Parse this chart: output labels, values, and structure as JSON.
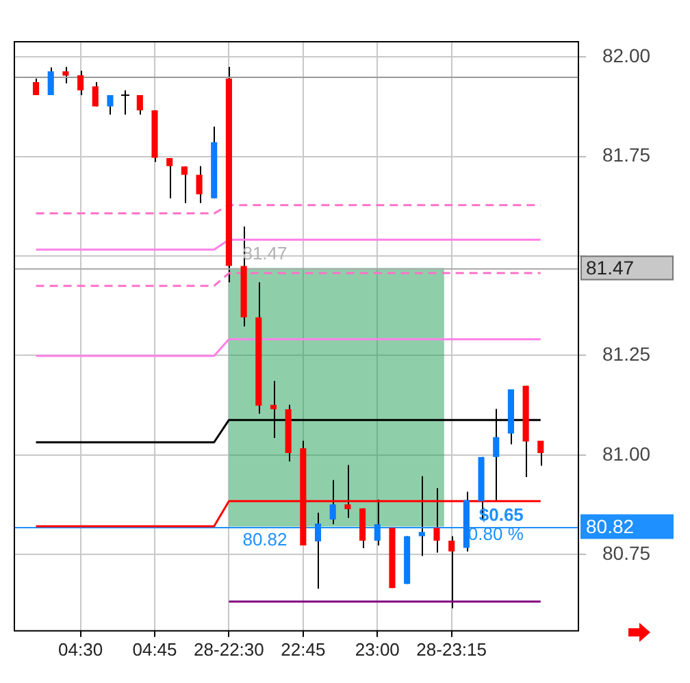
{
  "chart_data": {
    "type": "candlestick",
    "categories": [
      null,
      null,
      null,
      null,
      "04:30",
      null,
      null,
      null,
      null,
      "04:45",
      null,
      null,
      null,
      null,
      "28-22:30",
      null,
      null,
      null,
      null,
      "22:45",
      null,
      null,
      null,
      null,
      "23:00",
      null,
      null,
      null,
      null,
      "28-23:15",
      null,
      null,
      null,
      null,
      null,
      null,
      null,
      null
    ],
    "ohlc": [
      null,
      [
        81.937,
        81.946,
        81.904,
        81.904
      ],
      [
        81.904,
        81.974,
        81.904,
        81.964
      ],
      [
        81.964,
        81.975,
        81.934,
        81.953
      ],
      [
        81.954,
        81.965,
        81.904,
        81.916
      ],
      [
        81.926,
        81.937,
        81.876,
        81.876
      ],
      [
        81.876,
        81.904,
        81.855,
        81.904
      ],
      [
        81.904,
        81.916,
        81.855,
        81.904
      ],
      [
        81.904,
        81.904,
        81.855,
        81.866
      ],
      [
        81.866,
        81.866,
        81.736,
        81.747
      ],
      [
        81.746,
        81.746,
        81.645,
        81.726
      ],
      [
        81.725,
        81.725,
        81.633,
        81.704
      ],
      [
        81.704,
        81.726,
        81.633,
        81.655
      ],
      [
        81.645,
        81.825,
        81.645,
        81.786
      ],
      [
        81.946,
        81.975,
        81.434,
        81.475
      ],
      [
        81.475,
        81.574,
        81.323,
        81.346
      ],
      [
        81.346,
        81.434,
        81.104,
        81.124
      ],
      [
        81.126,
        81.186,
        81.043,
        81.115
      ],
      [
        81.115,
        81.126,
        80.984,
        81.005
      ],
      [
        81.017,
        81.036,
        80.773,
        80.773
      ],
      [
        80.783,
        80.855,
        80.664,
        80.828
      ],
      [
        80.838,
        80.937,
        80.826,
        80.876
      ],
      [
        80.876,
        80.975,
        80.842,
        80.864
      ],
      [
        80.866,
        80.866,
        80.766,
        80.785
      ],
      [
        80.785,
        80.888,
        80.773,
        80.826
      ],
      [
        80.817,
        80.817,
        80.666,
        80.666
      ],
      [
        80.676,
        80.796,
        80.676,
        80.796
      ],
      [
        80.796,
        80.947,
        80.746,
        80.807
      ],
      [
        80.817,
        80.917,
        80.755,
        80.785
      ],
      [
        80.785,
        80.796,
        80.615,
        80.758
      ],
      [
        80.767,
        80.908,
        80.758,
        80.887
      ],
      [
        80.884,
        80.995,
        80.838,
        80.995
      ],
      [
        80.995,
        81.116,
        80.884,
        81.045
      ],
      [
        81.054,
        81.165,
        81.027,
        81.165
      ],
      [
        81.174,
        81.174,
        80.945,
        81.034
      ],
      [
        81.036,
        81.036,
        80.973,
        81.005
      ],
      null,
      null
    ],
    "colors": [
      null,
      "#ff0000",
      "#0a7cff",
      "#ff0000",
      "#ff0000",
      "#ff0000",
      "#0a7cff",
      "#000000",
      "#ff0000",
      "#ff0000",
      "#ff0000",
      "#ff0000",
      "#ff0000",
      "#0a7cff",
      "#ff0000",
      "#ff0000",
      "#ff0000",
      "#ff0000",
      "#ff0000",
      "#ff0000",
      "#0a7cff",
      "#0a7cff",
      "#ff0000",
      "#ff0000",
      "#0a7cff",
      "#ff0000",
      "#0a7cff",
      "#0a7cff",
      "#ff0000",
      "#ff0000",
      "#0a7cff",
      "#0a7cff",
      "#0a7cff",
      "#0a7cff",
      "#ff0000",
      "#ff0000",
      null,
      null
    ],
    "series": [
      {
        "type": "line",
        "color": "#ff70c8",
        "line_style": "dashed",
        "values": [
          null,
          81.607,
          81.607,
          81.607,
          81.607,
          81.607,
          81.607,
          81.607,
          81.607,
          81.607,
          81.607,
          81.607,
          81.607,
          81.607,
          81.628,
          81.628,
          81.628,
          81.628,
          81.628,
          81.628,
          81.628,
          81.628,
          81.628,
          81.628,
          81.628,
          81.628,
          81.628,
          81.628,
          81.628,
          81.628,
          81.628,
          81.628,
          81.628,
          81.628,
          81.628,
          81.628,
          null,
          null
        ]
      },
      {
        "type": "line",
        "color": "#ff80e8",
        "line_style": "solid",
        "values": [
          null,
          81.516,
          81.516,
          81.516,
          81.516,
          81.516,
          81.516,
          81.516,
          81.516,
          81.516,
          81.516,
          81.516,
          81.516,
          81.516,
          81.541,
          81.541,
          81.541,
          81.541,
          81.541,
          81.541,
          81.541,
          81.541,
          81.541,
          81.541,
          81.541,
          81.541,
          81.541,
          81.541,
          81.541,
          81.541,
          81.541,
          81.541,
          81.541,
          81.541,
          81.541,
          81.541,
          null,
          null
        ]
      },
      {
        "type": "line",
        "color": "#ff70c8",
        "line_style": "dashed",
        "values": [
          null,
          81.425,
          81.425,
          81.425,
          81.425,
          81.425,
          81.425,
          81.425,
          81.425,
          81.425,
          81.425,
          81.425,
          81.425,
          81.425,
          81.457,
          81.457,
          81.457,
          81.457,
          81.457,
          81.457,
          81.457,
          81.457,
          81.457,
          81.457,
          81.457,
          81.457,
          81.457,
          81.457,
          81.457,
          81.457,
          81.457,
          81.457,
          81.457,
          81.457,
          81.457,
          81.457,
          null,
          null
        ]
      },
      {
        "type": "line",
        "color": "#ff80e8",
        "line_style": "solid",
        "values": [
          null,
          81.249,
          81.249,
          81.249,
          81.249,
          81.249,
          81.249,
          81.249,
          81.249,
          81.249,
          81.249,
          81.249,
          81.249,
          81.249,
          81.291,
          81.291,
          81.291,
          81.291,
          81.291,
          81.291,
          81.291,
          81.291,
          81.291,
          81.291,
          81.291,
          81.291,
          81.291,
          81.291,
          81.291,
          81.291,
          81.291,
          81.291,
          81.291,
          81.291,
          81.291,
          81.291,
          null,
          null
        ]
      },
      {
        "type": "line",
        "color": "#000000",
        "line_style": "solid",
        "values": [
          null,
          81.032,
          81.032,
          81.032,
          81.032,
          81.032,
          81.032,
          81.032,
          81.032,
          81.032,
          81.032,
          81.032,
          81.032,
          81.032,
          81.088,
          81.088,
          81.088,
          81.088,
          81.088,
          81.088,
          81.088,
          81.088,
          81.088,
          81.088,
          81.088,
          81.088,
          81.088,
          81.088,
          81.088,
          81.088,
          81.088,
          81.088,
          81.088,
          81.088,
          81.088,
          81.088,
          null,
          null
        ]
      },
      {
        "type": "line",
        "color": "#ff0000",
        "line_style": "solid",
        "values": [
          null,
          80.821,
          80.821,
          80.821,
          80.821,
          80.821,
          80.821,
          80.821,
          80.821,
          80.821,
          80.821,
          80.821,
          80.821,
          80.821,
          80.884,
          80.884,
          80.884,
          80.884,
          80.884,
          80.884,
          80.884,
          80.884,
          80.884,
          80.884,
          80.884,
          80.884,
          80.884,
          80.884,
          80.884,
          80.884,
          80.884,
          80.884,
          80.884,
          80.884,
          80.884,
          80.884,
          null,
          null
        ]
      },
      {
        "type": "line",
        "color": "#800080",
        "line_style": "solid",
        "values": [
          null,
          null,
          null,
          null,
          null,
          null,
          null,
          null,
          null,
          null,
          null,
          null,
          null,
          null,
          80.632,
          80.632,
          80.632,
          80.632,
          80.632,
          80.632,
          80.632,
          80.632,
          80.632,
          80.632,
          80.632,
          80.632,
          80.632,
          80.632,
          80.632,
          80.632,
          80.632,
          80.632,
          80.632,
          80.632,
          80.632,
          80.632,
          null,
          null
        ]
      }
    ],
    "ylim": [
      80.56,
      82.04
    ],
    "yticks": [
      {
        "value": 82,
        "label": "82.00"
      },
      {
        "value": 81.75,
        "label": "81.75"
      },
      {
        "value": 81.5,
        "label": null
      },
      {
        "value": 81.25,
        "label": "81.25"
      },
      {
        "value": 81,
        "label": "81.00"
      },
      {
        "value": 80.75,
        "label": "80.75"
      }
    ],
    "ref_lines": [
      {
        "axis": "y",
        "value": 81.95,
        "color": "#999999"
      },
      {
        "axis": "y",
        "value": 81.47,
        "label": "81.47",
        "color": "#aaaaaa"
      },
      {
        "axis": "y",
        "value": 80.82,
        "label": "80.82",
        "color": "#1e90ff"
      }
    ],
    "bands": [
      {
        "axis": "y",
        "from": 80.82,
        "to": 81.47,
        "color": "#1ea055"
      }
    ],
    "annotations": [
      {
        "text": "81.47",
        "y": 81.47
      },
      {
        "text": "80.82",
        "y": 80.82
      },
      {
        "text": "$0.65",
        "y": 80.82
      },
      {
        "text": "0.80 %",
        "y": 80.82
      }
    ],
    "grid": true,
    "legend": false
  }
}
